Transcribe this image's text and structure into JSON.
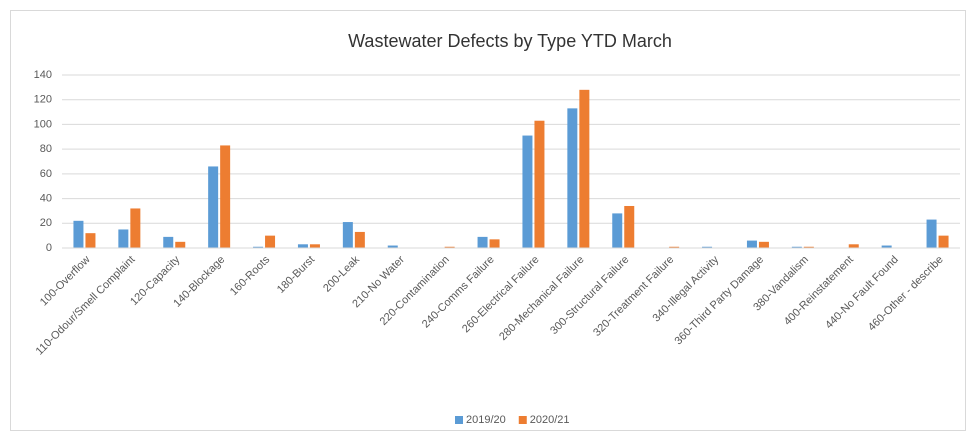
{
  "chart_data": {
    "type": "bar",
    "title": "Wastewater Defects by Type YTD March",
    "categories": [
      "100-Overflow",
      "110-Odour/Smell Complaint",
      "120-Capacity",
      "140-Blockage",
      "160-Roots",
      "180-Burst",
      "200-Leak",
      "210-No Water",
      "220-Contamination",
      "240-Comms Failure",
      "260-Electrical Failure",
      "280-Mechanical Failure",
      "300-Structural Failure",
      "320-Treatment Failure",
      "340-Illegal Activity",
      "360-Third Party Damage",
      "380-Vandalism",
      "400-Reinstatement",
      "440-No Fault Found",
      "460-Other - describe"
    ],
    "series": [
      {
        "name": "2019/20",
        "color": "#5b9bd5",
        "values": [
          22,
          15,
          9,
          66,
          1,
          3,
          21,
          2,
          0,
          9,
          91,
          113,
          28,
          0,
          1,
          6,
          1,
          0,
          2,
          23
        ]
      },
      {
        "name": "2020/21",
        "color": "#ed7d31",
        "values": [
          12,
          32,
          5,
          83,
          10,
          3,
          13,
          0,
          1,
          7,
          103,
          128,
          34,
          1,
          0,
          5,
          1,
          3,
          0,
          10
        ]
      }
    ],
    "ylim": [
      0,
      140
    ],
    "yticks": [
      0,
      20,
      40,
      60,
      80,
      100,
      120,
      140
    ],
    "grid": true,
    "legend": "bottom"
  }
}
